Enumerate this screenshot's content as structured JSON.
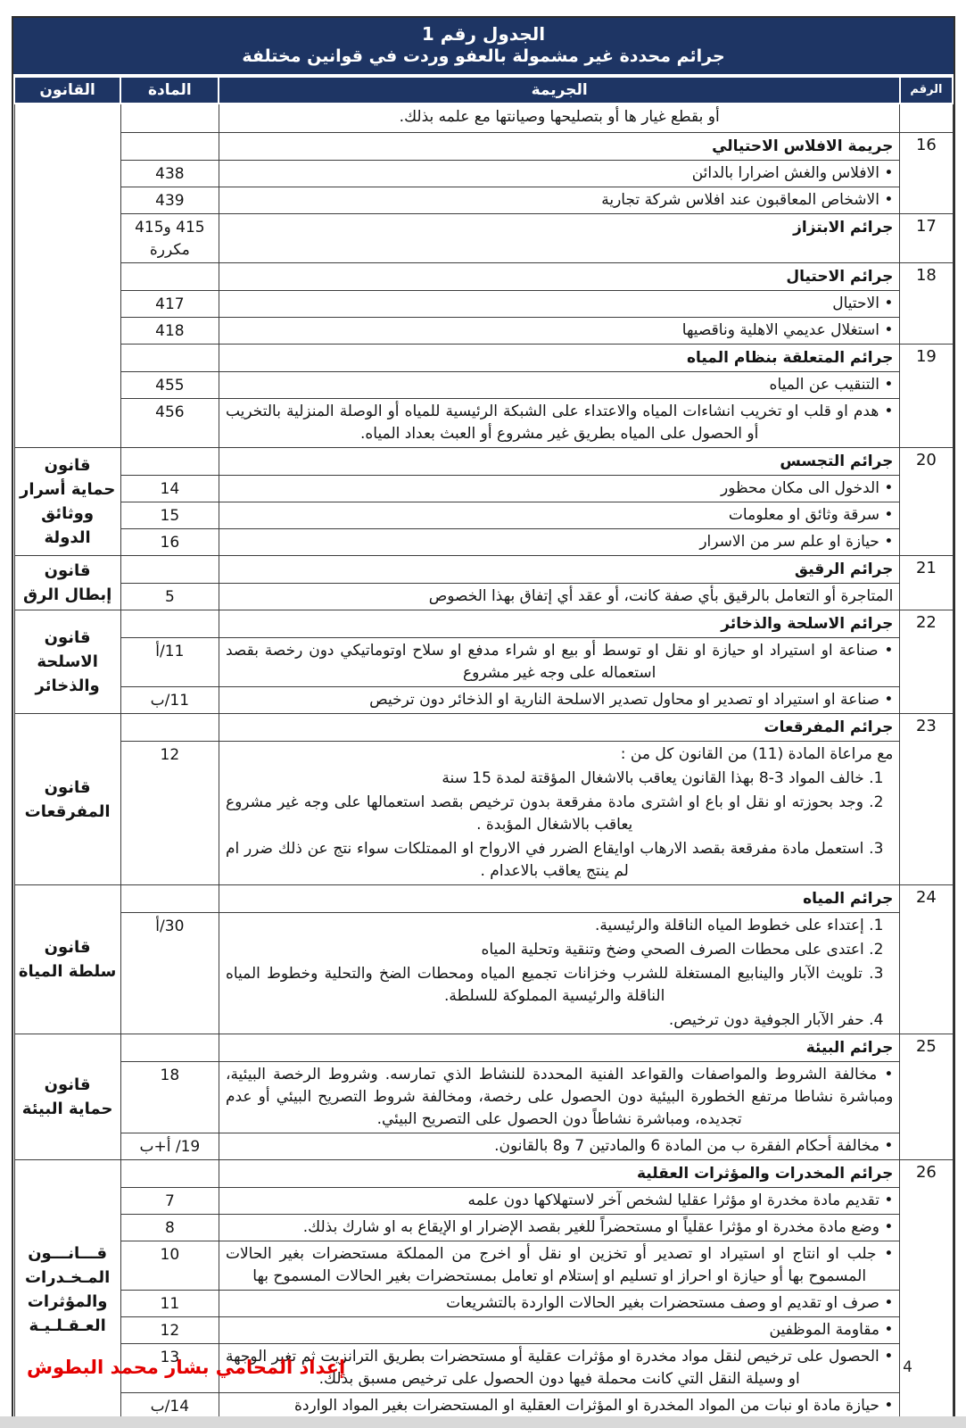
{
  "header": {
    "title_line1": "الجدول رقم 1",
    "title_line2": "جرائم محددة غير مشمولة بالعفو وردت في قوانين مختلفة"
  },
  "columns": {
    "number": "الرقم",
    "crime": "الجريمة",
    "article": "المادة",
    "law": "القانون"
  },
  "continuation_row": {
    "text": "أو بقطع غيار ها أو بتصليحها وصيانتها مع علمه بذلك."
  },
  "groups": [
    {
      "number": "16",
      "title": "جريمة الافلاس الاحتيالي",
      "title_article": "",
      "law": null,
      "items": [
        {
          "article": "438",
          "paragraphs": [
            "• الافلاس والغش اضرارا بالدائن"
          ]
        },
        {
          "article": "439",
          "paragraphs": [
            "• الاشخاص المعاقبون عند افلاس شركة تجارية"
          ]
        }
      ]
    },
    {
      "number": "17",
      "title": "جرائم الابتزاز",
      "title_article": "415 و415 مكررة",
      "law": null,
      "items": []
    },
    {
      "number": "18",
      "title": "جرائم الاحتيال",
      "title_article": "",
      "law": null,
      "items": [
        {
          "article": "417",
          "paragraphs": [
            "• الاحتيال"
          ]
        },
        {
          "article": "418",
          "paragraphs": [
            "• استغلال عديمي الاهلية وناقصيها"
          ]
        }
      ]
    },
    {
      "number": "19",
      "title": "جرائم المتعلقة بنظام المياه",
      "title_article": "",
      "law": null,
      "items": [
        {
          "article": "455",
          "paragraphs": [
            "• التنقيب عن المياه"
          ]
        },
        {
          "article": "456",
          "paragraphs": [
            "• هدم او قلب او تخريب انشاءات المياه والاعتداء على الشبكة الرئيسية للمياه أو الوصلة المنزلية بالتخريب أو الحصول على المياه بطريق غير مشروع أو العبث بعداد المياه."
          ]
        }
      ]
    },
    {
      "number": "20",
      "title": "جرائم التجسس",
      "title_article": "",
      "law": "قانون\nحماية أسرار\nووثائق\nالدولة",
      "items": [
        {
          "article": "14",
          "paragraphs": [
            "• الدخول الى مكان محظور"
          ]
        },
        {
          "article": "15",
          "paragraphs": [
            "• سرقة وثائق او معلومات"
          ]
        },
        {
          "article": "16",
          "paragraphs": [
            "• حيازة او علم سر من الاسرار"
          ]
        }
      ]
    },
    {
      "number": "21",
      "title": "جرائم الرقيق",
      "title_article": "",
      "law": "قانون\nإبطال الرق",
      "items": [
        {
          "article": "5",
          "paragraphs": [
            "المتاجرة أو التعامل بالرقيق بأي صفة كانت، أو عقد أي إتفاق بهذا الخصوص"
          ]
        }
      ]
    },
    {
      "number": "22",
      "title": "جرائم الاسلحة والذخائر",
      "title_article": "",
      "law": "قانون\nالاسلحة\nوالذخائر",
      "items": [
        {
          "article": "11/أ",
          "paragraphs": [
            "• صناعة او استيراد او حيازة او نقل او توسط أو بيع او شراء مدفع او سلاح اوتوماتيكي دون رخصة بقصد استعماله على وجه غير مشروع"
          ]
        },
        {
          "article": "11/ب",
          "paragraphs": [
            "• صناعة او استيراد او تصدير او محاول تصدير الاسلحة النارية او الذخائر دون ترخيص"
          ]
        }
      ]
    },
    {
      "number": "23",
      "title": "جرائم المفرقعات",
      "title_article": "",
      "law": "قانون\nالمفرقعات",
      "items": [
        {
          "article": "12",
          "paragraphs": [
            "مع مراعاة المادة (11) من القانون كل من :",
            "1. خالف المواد 3-8 بهذا القانون يعاقب بالاشغال المؤقتة لمدة 15 سنة",
            "2. وجد بحوزته او نقل او باع او اشترى مادة مفرقعة بدون ترخيص بقصد استعمالها على وجه غير مشروع يعاقب بالاشغال المؤبدة .",
            "3. استعمل مادة مفرقعة بقصد الارهاب اوايقاع الضرر في الارواح او الممتلكات سواء نتج عن ذلك ضرر ام لم ينتج يعاقب بالاعدام ."
          ]
        }
      ]
    },
    {
      "number": "24",
      "title": "جرائم المياه",
      "title_article": "",
      "law": "قانون\nسلطة المياة",
      "items": [
        {
          "article": "30/أ",
          "paragraphs": [
            "1. إعتداء على خطوط المياه الناقلة والرئيسية.",
            "2. اعتدى على محطات الصرف الصحي وضخ وتنقية وتحلية المياه",
            "3. تلويث الآبار والينابيع المستغلة للشرب وخزانات تجميع المياه ومحطات الضخ والتحلية وخطوط المياه الناقلة والرئيسية المملوكة للسلطة.",
            "4. حفر الآبار الجوفية دون ترخيص."
          ]
        }
      ]
    },
    {
      "number": "25",
      "title": "جرائم البيئة",
      "title_article": "",
      "law": "قانون\nحماية البيئة",
      "items": [
        {
          "article": "18",
          "paragraphs": [
            "• مخالفة الشروط والمواصفات والقواعد الفنية المحددة للنشاط الذي تمارسه. وشروط الرخصة البيئية، ومباشرة نشاطا مرتفع الخطورة البيئية دون الحصول على رخصة، ومخالفة شروط التصريح البيئي أو عدم تجديده، ومباشرة نشاطاً دون الحصول على التصريح البيئي."
          ]
        },
        {
          "article": "19/ أ+ب",
          "paragraphs": [
            "• مخالفة أحكام الفقرة ب من المادة 6 والمادتين 7 و8 بالقانون."
          ]
        }
      ]
    },
    {
      "number": "26",
      "title": "جرائم المخدرات والمؤثرات العقلية",
      "title_article": "",
      "law": "قـــانـــون\nالمـخـدرات\nوالمؤثرات\nالعـقـلـيـة",
      "items": [
        {
          "article": "7",
          "paragraphs": [
            "• تقديم مادة مخدرة او مؤثرا عقليا لشخص آخر لاستهلاكها دون علمه"
          ]
        },
        {
          "article": "8",
          "paragraphs": [
            "• وضع مادة مخدرة او مؤثرا عقلياً او مستحضراً للغير بقصد الإضرار او الإيقاع به او شارك بذلك."
          ]
        },
        {
          "article": "10",
          "paragraphs": [
            "• جلب او انتاج او استيراد او تصدير أو تخزين او نقل أو اخرج من المملكة مستحضرات بغير الحالات المسموح بها أو حيازة او احراز او تسليم او إستلام او تعامل بمستحضرات بغير الحالات المسموح بها"
          ]
        },
        {
          "article": "11",
          "paragraphs": [
            "• صرف او تقديم او وصف مستحضرات بغير الحالات الواردة بالتشريعات"
          ]
        },
        {
          "article": "12",
          "paragraphs": [
            "• مقاومة الموظفين"
          ]
        },
        {
          "article": "13",
          "paragraphs": [
            "• الحصول على ترخيص لنقل مواد مخدرة او مؤثرات عقلية أو مستحضرات بطريق الترانزيت ثم تغير الوجهة او وسيلة النقل التي كانت محملة فيها دون الحصول على ترخيص مسبق بذلك."
          ]
        },
        {
          "article": "14/ب",
          "paragraphs": [
            "• حيازة مادة او نبات من المواد المخدرة او المؤثرات العقلية او المستحضرات بغير المواد الواردة"
          ]
        }
      ]
    }
  ],
  "footer": {
    "prepared_by": "إعداد المحامي بشار محمد البطوش",
    "page_number": "4"
  },
  "colors": {
    "header_bg": "#1e3564",
    "header_text": "#ffffff",
    "footer_red": "#e30000",
    "grid_border": "#3d3d3d",
    "scrollbar_gray": "#d9d9d9"
  }
}
